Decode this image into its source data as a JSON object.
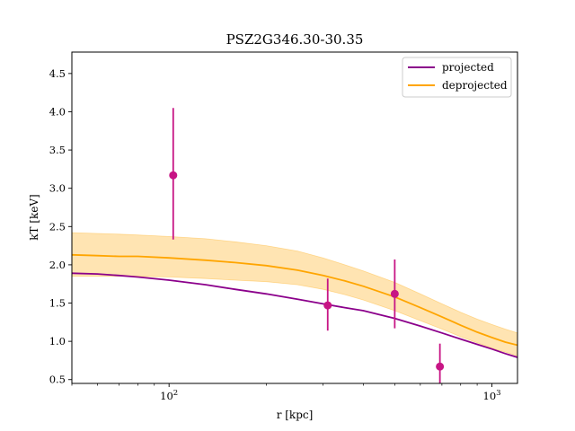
{
  "chart_data": {
    "type": "line",
    "title": "PSZ2G346.30-30.35",
    "xlabel": "r [kpc]",
    "ylabel": "kT [keV]",
    "xscale": "log",
    "xlim": [
      50,
      1200
    ],
    "ylim": [
      0.45,
      4.78
    ],
    "x_ticks": [
      {
        "value": 100,
        "label": "10^2"
      },
      {
        "value": 1000,
        "label": "10^3"
      }
    ],
    "y_ticks": [
      0.5,
      1.0,
      1.5,
      2.0,
      2.5,
      3.0,
      3.5,
      4.0,
      4.5
    ],
    "y_tick_labels": [
      "0.5",
      "1.0",
      "1.5",
      "2.0",
      "2.5",
      "3.0",
      "3.5",
      "4.0",
      "4.5"
    ],
    "grid": false,
    "legend_position": "top-right",
    "series": [
      {
        "name": "projected",
        "color": "#8b008b",
        "x": [
          50,
          60,
          70,
          80,
          100,
          130,
          160,
          200,
          250,
          300,
          350,
          400,
          500,
          600,
          700,
          800,
          900,
          1000,
          1100,
          1200
        ],
        "y": [
          1.89,
          1.88,
          1.86,
          1.84,
          1.8,
          1.74,
          1.68,
          1.62,
          1.55,
          1.49,
          1.44,
          1.4,
          1.3,
          1.2,
          1.11,
          1.03,
          0.96,
          0.9,
          0.84,
          0.79
        ]
      },
      {
        "name": "deprojected",
        "color": "#ffa500",
        "x": [
          50,
          60,
          70,
          80,
          100,
          130,
          160,
          200,
          250,
          300,
          350,
          400,
          500,
          600,
          700,
          800,
          900,
          1000,
          1100,
          1200
        ],
        "y": [
          2.13,
          2.12,
          2.11,
          2.11,
          2.09,
          2.06,
          2.03,
          1.99,
          1.93,
          1.86,
          1.79,
          1.72,
          1.58,
          1.44,
          1.32,
          1.21,
          1.12,
          1.05,
          0.99,
          0.95
        ],
        "band_lower": [
          1.85,
          1.85,
          1.85,
          1.85,
          1.84,
          1.82,
          1.8,
          1.78,
          1.74,
          1.68,
          1.61,
          1.54,
          1.4,
          1.27,
          1.16,
          1.06,
          0.98,
          0.91,
          0.86,
          0.81
        ],
        "band_upper": [
          2.42,
          2.41,
          2.4,
          2.39,
          2.37,
          2.34,
          2.3,
          2.25,
          2.18,
          2.09,
          2.0,
          1.92,
          1.77,
          1.62,
          1.49,
          1.38,
          1.29,
          1.22,
          1.16,
          1.11
        ]
      }
    ],
    "data_points": {
      "color": "#c71585",
      "points": [
        {
          "x": 103,
          "y": 3.17,
          "yerr_low": 2.33,
          "yerr_high": 4.05
        },
        {
          "x": 310,
          "y": 1.47,
          "yerr_low": 1.14,
          "yerr_high": 1.82
        },
        {
          "x": 500,
          "y": 1.62,
          "yerr_low": 1.17,
          "yerr_high": 2.07
        },
        {
          "x": 690,
          "y": 0.67,
          "yerr_low": 0.45,
          "yerr_high": 0.97
        }
      ]
    }
  }
}
